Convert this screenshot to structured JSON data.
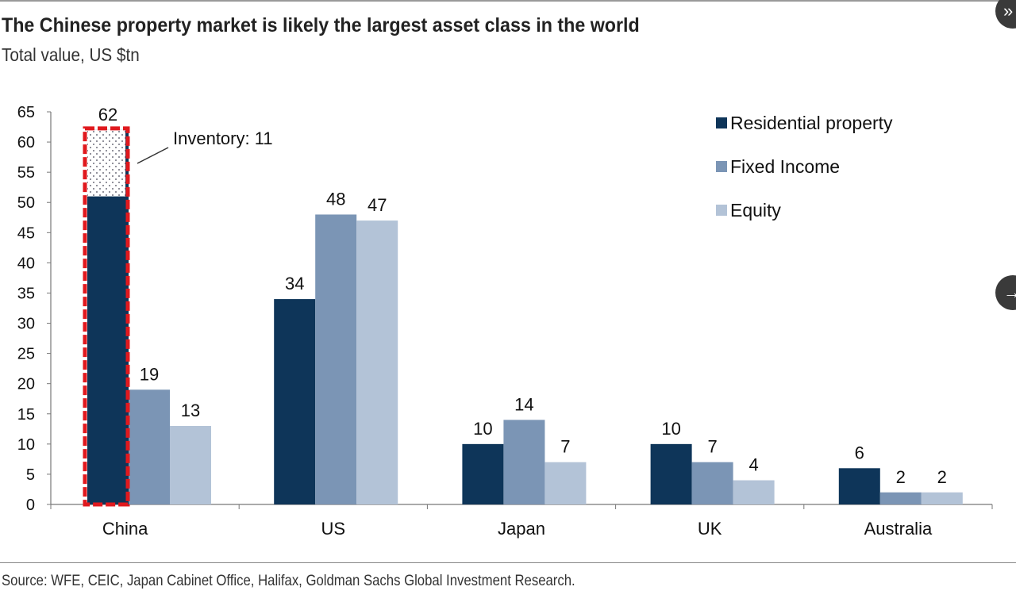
{
  "title": "The Chinese property market is likely the largest asset class in the world",
  "subtitle": "Total value, US $tn",
  "source": "Source: WFE, CEIC, Japan Cabinet Office, Halifax, Goldman Sachs Global Investment Research.",
  "nav": {
    "expand_icon": "double-chevron-right-icon",
    "next_icon": "arrow-right-icon"
  },
  "chart_data": {
    "type": "bar",
    "title": "The Chinese property market is likely the largest asset class in the world",
    "subtitle": "Total value, US $tn",
    "categories": [
      "China",
      "US",
      "Japan",
      "UK",
      "Australia"
    ],
    "series": [
      {
        "name": "Residential property",
        "values": [
          62,
          34,
          10,
          10,
          6
        ],
        "color": "#0e3559"
      },
      {
        "name": "Fixed Income",
        "values": [
          19,
          48,
          14,
          7,
          2
        ],
        "color": "#7b95b5"
      },
      {
        "name": "Equity",
        "values": [
          13,
          47,
          7,
          4,
          2
        ],
        "color": "#b3c3d7"
      }
    ],
    "annotation": {
      "text": "Inventory: 11",
      "category": "China",
      "series": "Residential property",
      "value": 11,
      "highlight_color": "#e0191e"
    },
    "ylim": [
      0,
      65
    ],
    "yticks": [
      0,
      5,
      10,
      15,
      20,
      25,
      30,
      35,
      40,
      45,
      50,
      55,
      60,
      65
    ],
    "grid": false,
    "legend": "top-right"
  }
}
